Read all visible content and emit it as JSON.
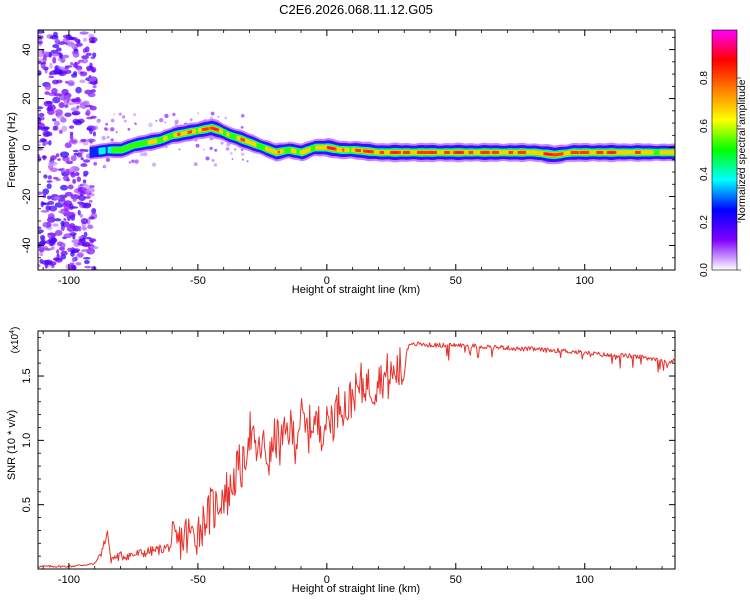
{
  "figure_title": "C2E6.2026.068.11.12.G05",
  "chart_data": [
    {
      "type": "heatmap",
      "title": "",
      "xlabel": "Height of straight line (km)",
      "ylabel": "Frequency (Hz)",
      "xlim": [
        -112,
        135
      ],
      "ylim": [
        -50,
        48
      ],
      "x_ticks": [
        -100,
        -50,
        0,
        50,
        100
      ],
      "y_ticks": [
        -40,
        -20,
        0,
        20,
        40
      ],
      "colorbar": {
        "label": "Normalized spectral amplitude",
        "range": [
          0,
          1
        ],
        "ticks": [
          "0.0",
          "0.2",
          "0.4",
          "0.6",
          "0.8"
        ],
        "tick_values": [
          0,
          0.2,
          0.4,
          0.6,
          0.8
        ],
        "colors": [
          "#ffffff",
          "#8000ff",
          "#0000ff",
          "#00ffff",
          "#00ff00",
          "#ffff00",
          "#ff8000",
          "#ff0000",
          "#ff00ff"
        ]
      },
      "ridge": {
        "x": [
          -92,
          -85,
          -80,
          -75,
          -70,
          -65,
          -60,
          -55,
          -50,
          -45,
          -42,
          -38,
          -35,
          -30,
          -25,
          -20,
          -15,
          -10,
          -5,
          0,
          5,
          10,
          20,
          30,
          50,
          70,
          80,
          88,
          95,
          105,
          115,
          135
        ],
        "y": [
          -2,
          -1,
          -1,
          1,
          2,
          3,
          5,
          6,
          7,
          8,
          7,
          5,
          4,
          2,
          0,
          -2,
          -1,
          -2,
          0,
          0,
          -1,
          -1,
          -2,
          -2,
          -2,
          -2,
          -2,
          -3,
          -2,
          -2,
          -2,
          -2
        ],
        "amplitude": [
          0.3,
          0.5,
          0.6,
          0.65,
          0.7,
          0.7,
          0.75,
          0.8,
          0.85,
          0.9,
          0.85,
          0.7,
          0.75,
          0.8,
          0.65,
          0.8,
          0.7,
          0.75,
          0.7,
          0.95,
          0.8,
          0.85,
          0.9,
          0.9,
          0.9,
          0.85,
          0.85,
          0.95,
          0.85,
          0.9,
          0.85,
          0.7
        ]
      },
      "noise_region_x": [
        -112,
        -90
      ]
    },
    {
      "type": "line",
      "title": "",
      "xlabel": "Height of straight line (km)",
      "ylabel": "SNR (10 * v/v)",
      "y_scale_label": "(x10",
      "y_scale_exp": "4",
      "y_scale_close": ")",
      "xlim": [
        -112,
        135
      ],
      "ylim": [
        0,
        1.85
      ],
      "x_ticks": [
        -100,
        -50,
        0,
        50,
        100
      ],
      "y_ticks": [
        0.5,
        1.0,
        1.5
      ],
      "y_tick_labels": [
        "0.5",
        "1.0",
        "1.5"
      ],
      "color": "#e8312a",
      "series": [
        {
          "x": [
            -112,
            -100,
            -90,
            -87,
            -85,
            -84,
            -80,
            -75,
            -70,
            -65,
            -60,
            -55,
            -50,
            -45,
            -42,
            -40,
            -38,
            -35,
            -32,
            -30,
            -28,
            -25,
            -22,
            -20,
            -18,
            -15,
            -12,
            -10,
            -8,
            -5,
            -3,
            0,
            3,
            5,
            8,
            10,
            13,
            15,
            18,
            20,
            22,
            25,
            28,
            30,
            31,
            33,
            35,
            40,
            50,
            60,
            70,
            75,
            80,
            85,
            90,
            95,
            100,
            105,
            110,
            115,
            120,
            125,
            130,
            132,
            135
          ],
          "y": [
            0.02,
            0.02,
            0.04,
            0.15,
            0.3,
            0.08,
            0.1,
            0.11,
            0.13,
            0.15,
            0.18,
            0.25,
            0.3,
            0.45,
            0.5,
            0.6,
            0.58,
            0.75,
            0.8,
            1.1,
            0.9,
            0.95,
            0.85,
            1.05,
            0.95,
            1.1,
            1.0,
            1.2,
            1.05,
            1.15,
            1.1,
            1.15,
            1.2,
            1.3,
            1.25,
            1.35,
            1.4,
            1.45,
            1.42,
            1.5,
            1.48,
            1.5,
            1.55,
            1.5,
            1.72,
            1.74,
            1.75,
            1.74,
            1.74,
            1.73,
            1.72,
            1.71,
            1.71,
            1.7,
            1.7,
            1.69,
            1.68,
            1.67,
            1.66,
            1.66,
            1.65,
            1.64,
            1.63,
            1.6,
            1.62
          ]
        }
      ]
    }
  ]
}
